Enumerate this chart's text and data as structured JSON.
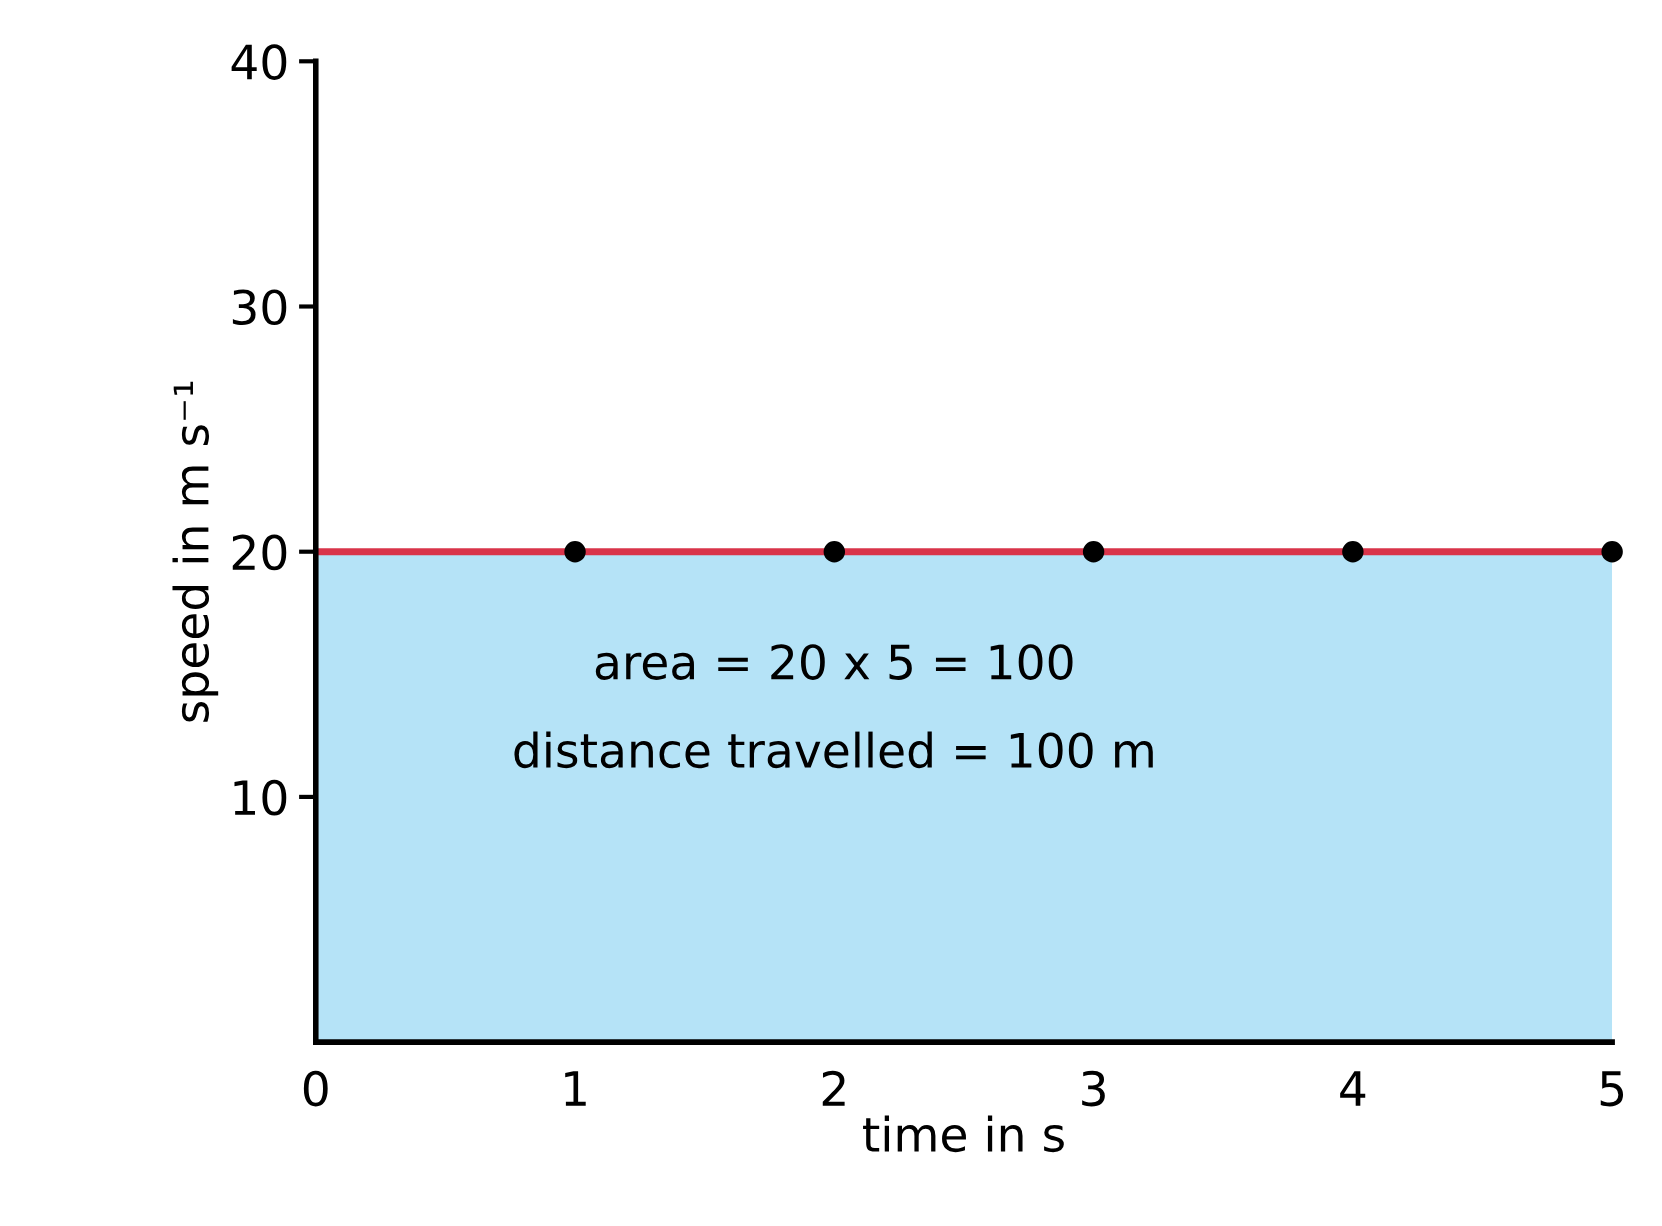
{
  "chart_data": {
    "type": "line",
    "xlabel": "time in s",
    "ylabel": "speed in m s⁻¹",
    "xlim": [
      0,
      5
    ],
    "ylim": [
      0,
      40
    ],
    "xticks": [
      0,
      1,
      2,
      3,
      4,
      5
    ],
    "yticks": [
      10,
      20,
      30,
      40
    ],
    "grid": false,
    "legend": false,
    "series": [
      {
        "type": "area",
        "color": "#b5e3f7",
        "x": [
          0,
          5
        ],
        "values": [
          20,
          20
        ]
      },
      {
        "color": "#d9344a",
        "x": [
          0,
          5
        ],
        "values": [
          20,
          20
        ],
        "line_style": "solid",
        "marker": "none"
      },
      {
        "type": "scatter",
        "color": "#000000",
        "x": [
          1,
          2,
          3,
          4,
          5
        ],
        "values": [
          20,
          20,
          20,
          20,
          20
        ],
        "marker": "circle"
      }
    ],
    "annotations": [
      "area = 20 x 5 = 100",
      "distance travelled = 100 m"
    ]
  }
}
